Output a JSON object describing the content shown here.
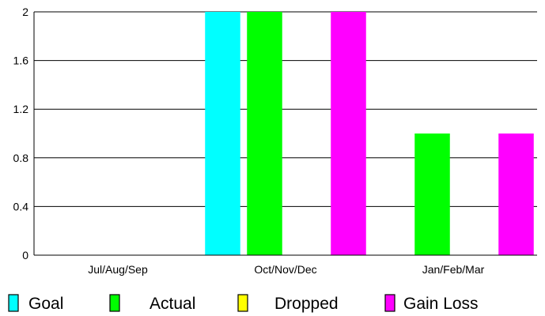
{
  "chart_data": {
    "type": "bar",
    "categories": [
      "Jul/Aug/Sep",
      "Oct/Nov/Dec",
      "Jan/Feb/Mar"
    ],
    "series": [
      {
        "name": "Goal",
        "color": "#00ffff",
        "values": [
          0,
          2,
          0
        ]
      },
      {
        "name": "Actual",
        "color": "#00ff00",
        "values": [
          0,
          2,
          1
        ]
      },
      {
        "name": "Dropped",
        "color": "#ffff00",
        "values": [
          0,
          0,
          0
        ]
      },
      {
        "name": "Gain Loss",
        "color": "#ff00ff",
        "values": [
          0,
          2,
          1
        ]
      }
    ],
    "title": "",
    "xlabel": "",
    "ylabel": "",
    "ylim": [
      0,
      2
    ],
    "yticks": [
      "0",
      "0.4",
      "0.8",
      "1.2",
      "1.6",
      "2"
    ],
    "grid": true,
    "legend_position": "bottom"
  }
}
